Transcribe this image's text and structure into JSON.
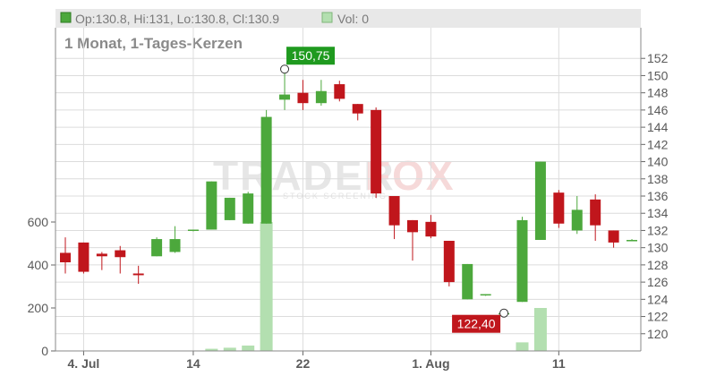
{
  "header": {
    "ohlc_text": "Op:130.8, Hi:131, Lo:130.8, Cl:130.9",
    "vol_text": "Vol: 0",
    "subtitle": "1 Monat, 1-Tages-Kerzen"
  },
  "watermark": {
    "main": "TRADER",
    "accent": "FOX",
    "sub": "STOCK SCREENING"
  },
  "colors": {
    "up": "#4ca83c",
    "down": "#c0161c",
    "volume": "#b3dfb0",
    "volume_down": "#f2c0c0",
    "grid": "#dcdcdc",
    "header_bg": "#e8e8e8"
  },
  "chart_data": {
    "type": "candlestick",
    "title": "1 Monat, 1-Tages-Kerzen",
    "price_axis": {
      "side": "right",
      "range": [
        118,
        154
      ],
      "ticks": [
        120,
        122,
        124,
        126,
        128,
        130,
        132,
        134,
        136,
        138,
        140,
        142,
        144,
        146,
        148,
        150,
        152
      ]
    },
    "volume_axis": {
      "side": "left",
      "range": [
        0,
        800
      ],
      "ticks": [
        0,
        200,
        400,
        600
      ]
    },
    "x_ticks": [
      {
        "label": "4. Jul",
        "index": 1
      },
      {
        "label": "14",
        "index": 7
      },
      {
        "label": "22",
        "index": 13
      },
      {
        "label": "1. Aug",
        "index": 20
      },
      {
        "label": "11",
        "index": 27
      }
    ],
    "grid": true,
    "candles": [
      {
        "o": 129.4,
        "h": 131.2,
        "l": 127.0,
        "c": 128.3,
        "v": 0
      },
      {
        "o": 130.6,
        "h": 130.6,
        "l": 127.0,
        "c": 127.2,
        "v": 0
      },
      {
        "o": 129.3,
        "h": 129.5,
        "l": 127.4,
        "c": 129.0,
        "v": 0
      },
      {
        "o": 129.7,
        "h": 130.2,
        "l": 127.0,
        "c": 128.9,
        "v": 0
      },
      {
        "o": 127.0,
        "h": 127.9,
        "l": 125.8,
        "c": 126.8,
        "v": 0
      },
      {
        "o": 129.0,
        "h": 131.2,
        "l": 129.0,
        "c": 131.0,
        "v": 0
      },
      {
        "o": 129.5,
        "h": 132.5,
        "l": 129.4,
        "c": 131.0,
        "v": 0
      },
      {
        "o": 132.0,
        "h": 132.1,
        "l": 131.9,
        "c": 132.1,
        "v": 0
      },
      {
        "o": 132.1,
        "h": 137.7,
        "l": 132.1,
        "c": 137.7,
        "v": 10
      },
      {
        "o": 133.2,
        "h": 135.8,
        "l": 133.2,
        "c": 135.8,
        "v": 15
      },
      {
        "o": 132.8,
        "h": 136.5,
        "l": 132.8,
        "c": 136.3,
        "v": 25
      },
      {
        "o": 132.8,
        "h": 146.0,
        "l": 132.8,
        "c": 145.2,
        "v": 600
      },
      {
        "o": 147.2,
        "h": 150.75,
        "l": 146.0,
        "c": 147.8,
        "v": 0
      },
      {
        "o": 148.0,
        "h": 149.5,
        "l": 146.0,
        "c": 146.8,
        "v": 0
      },
      {
        "o": 146.8,
        "h": 149.5,
        "l": 146.5,
        "c": 148.2,
        "v": 0
      },
      {
        "o": 149.0,
        "h": 149.4,
        "l": 147.0,
        "c": 147.3,
        "v": 0
      },
      {
        "o": 146.7,
        "h": 146.7,
        "l": 144.8,
        "c": 145.6,
        "v": 0
      },
      {
        "o": 146.0,
        "h": 146.3,
        "l": 135.8,
        "c": 136.3,
        "v": 0
      },
      {
        "o": 136.0,
        "h": 136.0,
        "l": 131.0,
        "c": 132.6,
        "v": 0
      },
      {
        "o": 133.2,
        "h": 133.2,
        "l": 128.5,
        "c": 131.8,
        "v": 0
      },
      {
        "o": 133.0,
        "h": 133.8,
        "l": 131.1,
        "c": 131.3,
        "v": 0
      },
      {
        "o": 130.8,
        "h": 130.8,
        "l": 125.5,
        "c": 126.0,
        "v": 0
      },
      {
        "o": 124.0,
        "h": 128.1,
        "l": 124.0,
        "c": 128.1,
        "v": 0
      },
      {
        "o": 124.5,
        "h": 124.6,
        "l": 124.4,
        "c": 124.6,
        "v": 0
      },
      {
        "o": 122.4,
        "h": 122.4,
        "l": 122.4,
        "c": 122.4,
        "v": 0
      },
      {
        "o": 123.7,
        "h": 133.6,
        "l": 123.7,
        "c": 133.2,
        "v": 40
      },
      {
        "o": 130.9,
        "h": 140.0,
        "l": 130.9,
        "c": 140.0,
        "v": 200
      },
      {
        "o": 136.4,
        "h": 136.7,
        "l": 132.3,
        "c": 132.8,
        "v": 0
      },
      {
        "o": 132.0,
        "h": 136.0,
        "l": 131.6,
        "c": 134.4,
        "v": 0
      },
      {
        "o": 135.6,
        "h": 136.2,
        "l": 130.8,
        "c": 132.6,
        "v": 0
      },
      {
        "o": 132.0,
        "h": 132.0,
        "l": 130.0,
        "c": 130.6,
        "v": 0
      },
      {
        "o": 130.8,
        "h": 131.0,
        "l": 130.8,
        "c": 130.9,
        "v": 0
      }
    ],
    "annotations": [
      {
        "label": "150,75",
        "index": 12,
        "price": 150.75,
        "style": "up"
      },
      {
        "label": "122,40",
        "index": 24,
        "price": 122.4,
        "style": "down"
      }
    ]
  }
}
